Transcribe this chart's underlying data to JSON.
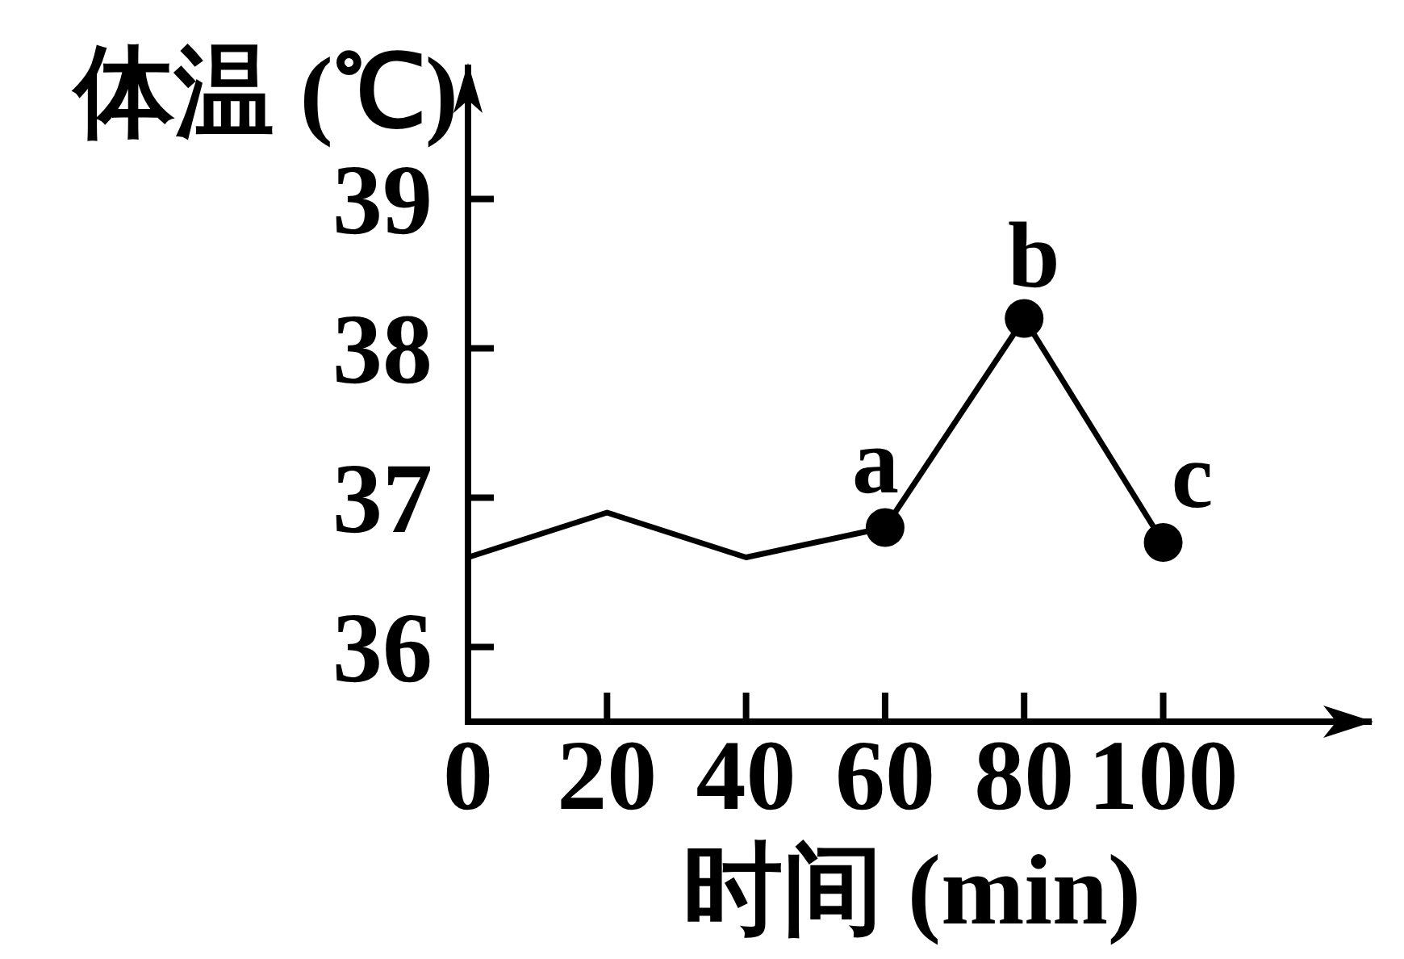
{
  "chart_data": {
    "type": "line",
    "xlabel": "时间 (min)",
    "ylabel": "体温 (℃)",
    "xlim": [
      0,
      130
    ],
    "ylim": [
      35.5,
      39.9
    ],
    "xticks": [
      0,
      20,
      40,
      60,
      80,
      100
    ],
    "yticks": [
      36,
      37,
      38,
      39
    ],
    "series": [
      {
        "x": [
          0,
          20,
          40,
          60,
          80,
          100
        ],
        "values": [
          36.6,
          36.9,
          36.6,
          36.8,
          38.2,
          36.7
        ],
        "color": "#000000",
        "marker": "none"
      },
      {
        "type": "scatter",
        "x": [
          60,
          80,
          100
        ],
        "values": [
          36.8,
          38.2,
          36.7
        ],
        "color": "#000000",
        "marker": "circle"
      }
    ],
    "annotations": [
      {
        "text": "a",
        "x": 60,
        "y": 36.8
      },
      {
        "text": "b",
        "x": 80,
        "y": 38.2
      },
      {
        "text": "c",
        "x": 100,
        "y": 36.7
      }
    ],
    "grid": false
  }
}
